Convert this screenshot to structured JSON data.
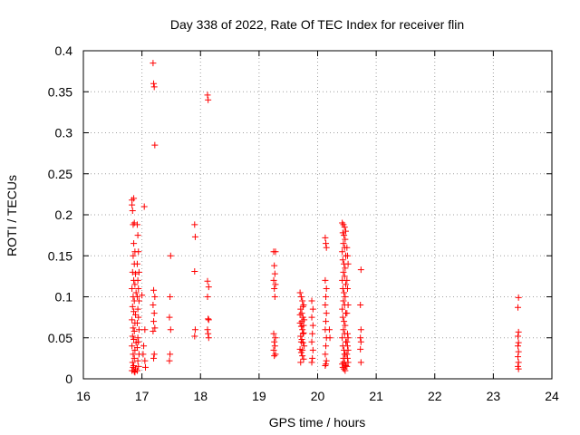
{
  "chart_data": {
    "type": "scatter",
    "title": "Day 338 of 2022, Rate Of TEC Index for receiver flin",
    "xlabel": "GPS time / hours",
    "ylabel": "ROTI / TECUs",
    "xlim": [
      16,
      24
    ],
    "ylim": [
      0,
      0.4
    ],
    "xticks": [
      16,
      17,
      18,
      19,
      20,
      21,
      22,
      23,
      24
    ],
    "yticks": [
      0,
      0.05,
      0.1,
      0.15,
      0.2,
      0.25,
      0.3,
      0.35,
      0.4
    ],
    "xtick_labels": [
      "16",
      "17",
      "18",
      "19",
      "20",
      "21",
      "22",
      "23",
      "24"
    ],
    "ytick_labels": [
      "0",
      "0.05",
      "0.1",
      "0.15",
      "0.2",
      "0.25",
      "0.3",
      "0.35",
      "0.4"
    ],
    "grid": true,
    "marker": "+",
    "color": "#ff0000",
    "series": [
      {
        "name": "ROTI",
        "points": [
          [
            16.83,
            0.218
          ],
          [
            16.83,
            0.212
          ],
          [
            16.84,
            0.205
          ],
          [
            16.86,
            0.22
          ],
          [
            16.85,
            0.188
          ],
          [
            16.87,
            0.19
          ],
          [
            16.86,
            0.165
          ],
          [
            16.88,
            0.155
          ],
          [
            16.85,
            0.15
          ],
          [
            16.87,
            0.14
          ],
          [
            16.84,
            0.13
          ],
          [
            16.89,
            0.128
          ],
          [
            16.86,
            0.12
          ],
          [
            16.88,
            0.115
          ],
          [
            16.83,
            0.11
          ],
          [
            16.9,
            0.105
          ],
          [
            16.85,
            0.1
          ],
          [
            16.87,
            0.095
          ],
          [
            16.84,
            0.088
          ],
          [
            16.86,
            0.082
          ],
          [
            16.89,
            0.078
          ],
          [
            16.83,
            0.072
          ],
          [
            16.88,
            0.068
          ],
          [
            16.85,
            0.062
          ],
          [
            16.87,
            0.058
          ],
          [
            16.84,
            0.052
          ],
          [
            16.86,
            0.048
          ],
          [
            16.9,
            0.044
          ],
          [
            16.83,
            0.04
          ],
          [
            16.88,
            0.035
          ],
          [
            16.85,
            0.03
          ],
          [
            16.87,
            0.025
          ],
          [
            16.84,
            0.02
          ],
          [
            16.86,
            0.016
          ],
          [
            16.89,
            0.012
          ],
          [
            16.83,
            0.01
          ],
          [
            16.88,
            0.008
          ],
          [
            16.85,
            0.014
          ],
          [
            16.87,
            0.009
          ],
          [
            16.92,
            0.188
          ],
          [
            16.93,
            0.175
          ],
          [
            16.94,
            0.155
          ],
          [
            16.92,
            0.14
          ],
          [
            16.95,
            0.13
          ],
          [
            16.93,
            0.12
          ],
          [
            16.94,
            0.11
          ],
          [
            16.92,
            0.1
          ],
          [
            16.95,
            0.095
          ],
          [
            16.93,
            0.085
          ],
          [
            16.94,
            0.075
          ],
          [
            16.92,
            0.068
          ],
          [
            16.95,
            0.06
          ],
          [
            16.93,
            0.05
          ],
          [
            16.94,
            0.045
          ],
          [
            16.92,
            0.038
          ],
          [
            16.95,
            0.03
          ],
          [
            16.93,
            0.022
          ],
          [
            16.94,
            0.015
          ],
          [
            16.92,
            0.01
          ],
          [
            17.04,
            0.21
          ],
          [
            17.0,
            0.102
          ],
          [
            17.05,
            0.06
          ],
          [
            17.03,
            0.04
          ],
          [
            17.02,
            0.03
          ],
          [
            17.05,
            0.022
          ],
          [
            17.06,
            0.014
          ],
          [
            17.19,
            0.385
          ],
          [
            17.2,
            0.36
          ],
          [
            17.21,
            0.356
          ],
          [
            17.22,
            0.285
          ],
          [
            17.2,
            0.108
          ],
          [
            17.22,
            0.1
          ],
          [
            17.19,
            0.09
          ],
          [
            17.21,
            0.08
          ],
          [
            17.2,
            0.07
          ],
          [
            17.22,
            0.062
          ],
          [
            17.19,
            0.058
          ],
          [
            17.21,
            0.03
          ],
          [
            17.2,
            0.025
          ],
          [
            17.49,
            0.15
          ],
          [
            17.48,
            0.1
          ],
          [
            17.47,
            0.075
          ],
          [
            17.49,
            0.06
          ],
          [
            17.48,
            0.03
          ],
          [
            17.47,
            0.022
          ],
          [
            17.9,
            0.188
          ],
          [
            17.91,
            0.173
          ],
          [
            17.9,
            0.131
          ],
          [
            17.91,
            0.06
          ],
          [
            17.9,
            0.052
          ],
          [
            18.12,
            0.346
          ],
          [
            18.13,
            0.34
          ],
          [
            18.12,
            0.119
          ],
          [
            18.14,
            0.112
          ],
          [
            18.12,
            0.1
          ],
          [
            18.13,
            0.073
          ],
          [
            18.14,
            0.072
          ],
          [
            18.12,
            0.06
          ],
          [
            18.13,
            0.055
          ],
          [
            18.14,
            0.05
          ],
          [
            19.25,
            0.155
          ],
          [
            19.28,
            0.155
          ],
          [
            19.26,
            0.138
          ],
          [
            19.27,
            0.128
          ],
          [
            19.25,
            0.12
          ],
          [
            19.28,
            0.115
          ],
          [
            19.26,
            0.11
          ],
          [
            19.27,
            0.1
          ],
          [
            19.25,
            0.055
          ],
          [
            19.28,
            0.05
          ],
          [
            19.26,
            0.045
          ],
          [
            19.27,
            0.04
          ],
          [
            19.25,
            0.035
          ],
          [
            19.28,
            0.03
          ],
          [
            19.26,
            0.028
          ],
          [
            19.7,
            0.105
          ],
          [
            19.72,
            0.1
          ],
          [
            19.74,
            0.095
          ],
          [
            19.76,
            0.09
          ],
          [
            19.71,
            0.085
          ],
          [
            19.73,
            0.08
          ],
          [
            19.75,
            0.075
          ],
          [
            19.77,
            0.072
          ],
          [
            19.7,
            0.068
          ],
          [
            19.72,
            0.064
          ],
          [
            19.74,
            0.06
          ],
          [
            19.76,
            0.056
          ],
          [
            19.71,
            0.052
          ],
          [
            19.73,
            0.048
          ],
          [
            19.75,
            0.044
          ],
          [
            19.77,
            0.04
          ],
          [
            19.7,
            0.036
          ],
          [
            19.72,
            0.032
          ],
          [
            19.74,
            0.028
          ],
          [
            19.76,
            0.024
          ],
          [
            19.71,
            0.02
          ],
          [
            19.73,
            0.07
          ],
          [
            19.75,
            0.055
          ],
          [
            19.72,
            0.045
          ],
          [
            19.74,
            0.035
          ],
          [
            19.76,
            0.065
          ],
          [
            19.7,
            0.078
          ],
          [
            19.75,
            0.088
          ],
          [
            19.9,
            0.095
          ],
          [
            19.92,
            0.085
          ],
          [
            19.9,
            0.075
          ],
          [
            19.92,
            0.065
          ],
          [
            19.91,
            0.055
          ],
          [
            19.9,
            0.045
          ],
          [
            19.92,
            0.035
          ],
          [
            19.91,
            0.025
          ],
          [
            19.9,
            0.02
          ],
          [
            20.13,
            0.172
          ],
          [
            20.14,
            0.165
          ],
          [
            20.15,
            0.16
          ],
          [
            20.13,
            0.12
          ],
          [
            20.15,
            0.11
          ],
          [
            20.14,
            0.1
          ],
          [
            20.13,
            0.09
          ],
          [
            20.15,
            0.08
          ],
          [
            20.14,
            0.07
          ],
          [
            20.13,
            0.06
          ],
          [
            20.15,
            0.05
          ],
          [
            20.14,
            0.04
          ],
          [
            20.13,
            0.03
          ],
          [
            20.15,
            0.022
          ],
          [
            20.14,
            0.018
          ],
          [
            20.13,
            0.016
          ],
          [
            20.2,
            0.06
          ],
          [
            20.21,
            0.05
          ],
          [
            20.42,
            0.19
          ],
          [
            20.44,
            0.188
          ],
          [
            20.46,
            0.185
          ],
          [
            20.48,
            0.18
          ],
          [
            20.43,
            0.178
          ],
          [
            20.45,
            0.175
          ],
          [
            20.47,
            0.17
          ],
          [
            20.44,
            0.165
          ],
          [
            20.46,
            0.16
          ],
          [
            20.42,
            0.155
          ],
          [
            20.48,
            0.15
          ],
          [
            20.43,
            0.145
          ],
          [
            20.45,
            0.14
          ],
          [
            20.47,
            0.135
          ],
          [
            20.44,
            0.13
          ],
          [
            20.46,
            0.125
          ],
          [
            20.42,
            0.12
          ],
          [
            20.48,
            0.115
          ],
          [
            20.43,
            0.11
          ],
          [
            20.45,
            0.105
          ],
          [
            20.47,
            0.1
          ],
          [
            20.44,
            0.095
          ],
          [
            20.46,
            0.09
          ],
          [
            20.42,
            0.085
          ],
          [
            20.48,
            0.08
          ],
          [
            20.43,
            0.075
          ],
          [
            20.45,
            0.07
          ],
          [
            20.47,
            0.065
          ],
          [
            20.44,
            0.06
          ],
          [
            20.46,
            0.055
          ],
          [
            20.42,
            0.05
          ],
          [
            20.48,
            0.045
          ],
          [
            20.43,
            0.04
          ],
          [
            20.45,
            0.035
          ],
          [
            20.47,
            0.03
          ],
          [
            20.44,
            0.025
          ],
          [
            20.46,
            0.02
          ],
          [
            20.42,
            0.018
          ],
          [
            20.48,
            0.016
          ],
          [
            20.43,
            0.014
          ],
          [
            20.45,
            0.012
          ],
          [
            20.47,
            0.01
          ],
          [
            20.44,
            0.02
          ],
          [
            20.46,
            0.03
          ],
          [
            20.5,
            0.16
          ],
          [
            20.51,
            0.15
          ],
          [
            20.52,
            0.14
          ],
          [
            20.5,
            0.12
          ],
          [
            20.51,
            0.11
          ],
          [
            20.52,
            0.09
          ],
          [
            20.5,
            0.08
          ],
          [
            20.51,
            0.055
          ],
          [
            20.52,
            0.05
          ],
          [
            20.5,
            0.045
          ],
          [
            20.51,
            0.04
          ],
          [
            20.52,
            0.035
          ],
          [
            20.5,
            0.03
          ],
          [
            20.51,
            0.025
          ],
          [
            20.52,
            0.02
          ],
          [
            20.5,
            0.015
          ],
          [
            20.74,
            0.133
          ],
          [
            20.73,
            0.09
          ],
          [
            20.74,
            0.06
          ],
          [
            20.73,
            0.05
          ],
          [
            20.74,
            0.045
          ],
          [
            20.73,
            0.036
          ],
          [
            20.74,
            0.02
          ],
          [
            23.43,
            0.099
          ],
          [
            23.42,
            0.087
          ],
          [
            23.43,
            0.057
          ],
          [
            23.42,
            0.052
          ],
          [
            23.43,
            0.044
          ],
          [
            23.42,
            0.04
          ],
          [
            23.43,
            0.033
          ],
          [
            23.42,
            0.027
          ],
          [
            23.43,
            0.02
          ],
          [
            23.42,
            0.015
          ],
          [
            23.43,
            0.012
          ]
        ]
      }
    ]
  }
}
